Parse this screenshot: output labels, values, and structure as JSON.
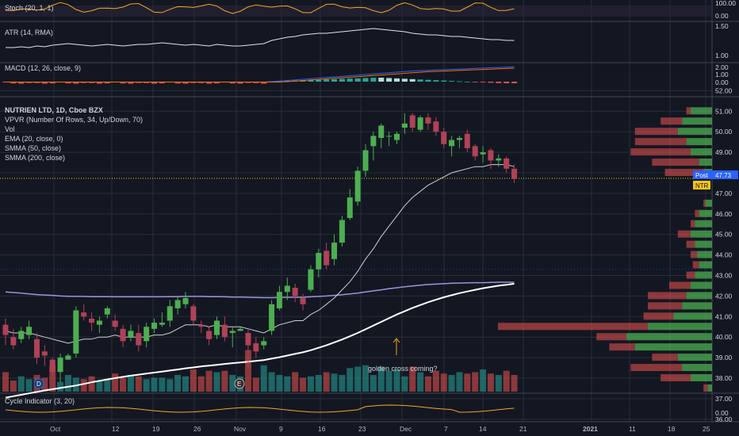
{
  "panes": {
    "stoch": {
      "label": "Stoch (20, 1, 1)",
      "ticks": [
        "100.00",
        "0.00"
      ]
    },
    "atr": {
      "label": "ATR (14, RMA)",
      "ticks": [
        "1.50",
        "1.00"
      ]
    },
    "macd": {
      "label": "MACD (12, 26, close, 9)",
      "ticks": [
        "2.00",
        "1.00",
        "0.00"
      ]
    },
    "main": {
      "title": "NUTRIEN LTD, 1D, Cboe BZX",
      "indicators": [
        "VPVR (Number Of Rows, 34, Up/Down, 70)",
        "Vol",
        "EMA (20, close, 0)",
        "SMMA (50, close)",
        "SMMA (200, close)"
      ],
      "ticks": [
        "52.00",
        "51.00",
        "50.00",
        "49.00",
        "48.00",
        "47.00",
        "46.00",
        "45.00",
        "44.00",
        "43.00",
        "42.00",
        "41.00",
        "40.00",
        "39.00",
        "38.00",
        "37.00",
        "36.00",
        "35.00"
      ],
      "post_label": "Post",
      "post_price": "47.73",
      "symbol_tag": "NTR",
      "annotation": "golden cross coming?",
      "event_markers": [
        "D",
        "E"
      ]
    },
    "cycle": {
      "label": "Cycle Indicator (3, 20)",
      "ticks": [
        "0.00"
      ]
    }
  },
  "x_axis": [
    "Oct",
    "12",
    "19",
    "26",
    "Nov",
    "9",
    "16",
    "23",
    "Dec",
    "7",
    "14",
    "21",
    "2021",
    "11",
    "18",
    "25"
  ],
  "colors": {
    "background": "#131722",
    "up": "#26a69a",
    "up_candle": "#4caf50",
    "down": "#ef5350",
    "down_candle": "#b04257",
    "ema": "#cfcfcf",
    "smma50": "#9c93d8",
    "smma200": "#ffffff",
    "annotation": "#f5a623"
  },
  "chart_data": {
    "type": "candlestick",
    "title": "NUTRIEN LTD, 1D, Cboe BZX",
    "price_range": [
      35,
      52.5
    ],
    "candles": [
      [
        40.6,
        40.9,
        39.6,
        40.1
      ],
      [
        40.0,
        40.4,
        39.4,
        39.6
      ],
      [
        39.9,
        40.5,
        39.7,
        40.3
      ],
      [
        40.1,
        40.8,
        39.9,
        40.5
      ],
      [
        39.9,
        40.2,
        38.7,
        39.0
      ],
      [
        39.3,
        39.6,
        38.6,
        39.1
      ],
      [
        38.9,
        39.0,
        38.1,
        38.3
      ],
      [
        38.3,
        39.2,
        37.8,
        39.0
      ],
      [
        38.9,
        39.2,
        39.0,
        39.1
      ],
      [
        39.2,
        41.5,
        39.0,
        41.3
      ],
      [
        41.2,
        41.6,
        40.8,
        41.0
      ],
      [
        40.9,
        41.2,
        40.3,
        40.7
      ],
      [
        40.6,
        41.0,
        40.2,
        40.8
      ],
      [
        41.1,
        41.5,
        40.9,
        41.4
      ],
      [
        40.8,
        41.1,
        40.3,
        40.5
      ],
      [
        40.4,
        40.6,
        39.5,
        39.8
      ],
      [
        40.0,
        40.6,
        39.8,
        40.3
      ],
      [
        40.2,
        40.6,
        39.3,
        39.6
      ],
      [
        39.8,
        40.7,
        39.5,
        40.5
      ],
      [
        40.4,
        40.9,
        40.2,
        40.7
      ],
      [
        40.6,
        41.2,
        40.5,
        40.7
      ],
      [
        40.8,
        41.8,
        40.5,
        41.5
      ],
      [
        41.4,
        42.0,
        41.1,
        41.8
      ],
      [
        41.6,
        42.2,
        41.4,
        41.9
      ],
      [
        41.5,
        41.6,
        40.6,
        40.8
      ],
      [
        40.6,
        40.8,
        40.2,
        40.5
      ],
      [
        40.3,
        40.5,
        39.6,
        39.9
      ],
      [
        40.1,
        41.0,
        39.9,
        40.8
      ],
      [
        40.6,
        41.0,
        39.8,
        40.0
      ],
      [
        40.2,
        40.5,
        39.5,
        40.3
      ],
      [
        40.3,
        40.5,
        40.3,
        40.4
      ],
      [
        40.2,
        40.4,
        38.5,
        39.6
      ],
      [
        39.7,
        40.0,
        39.0,
        39.3
      ],
      [
        39.6,
        40.0,
        39.4,
        39.8
      ],
      [
        40.3,
        41.8,
        40.1,
        41.6
      ],
      [
        41.4,
        42.5,
        41.3,
        42.2
      ],
      [
        42.2,
        42.9,
        41.8,
        42.5
      ],
      [
        42.4,
        42.6,
        41.7,
        42.0
      ],
      [
        41.9,
        42.1,
        41.3,
        41.6
      ],
      [
        42.3,
        43.5,
        42.2,
        43.3
      ],
      [
        43.3,
        44.3,
        42.9,
        44.1
      ],
      [
        44.2,
        44.6,
        43.3,
        43.5
      ],
      [
        43.8,
        45.0,
        43.5,
        44.6
      ],
      [
        44.6,
        45.9,
        44.4,
        45.7
      ],
      [
        45.8,
        47.2,
        45.7,
        46.8
      ],
      [
        46.6,
        48.3,
        46.4,
        48.1
      ],
      [
        48.1,
        49.4,
        47.8,
        49.1
      ],
      [
        49.3,
        50.0,
        48.6,
        49.8
      ],
      [
        49.7,
        50.4,
        49.2,
        50.3
      ],
      [
        49.8,
        50.0,
        49.3,
        49.8
      ],
      [
        49.6,
        50.0,
        49.4,
        49.9
      ],
      [
        50.2,
        50.9,
        49.9,
        50.4
      ],
      [
        50.8,
        50.9,
        50.0,
        50.2
      ],
      [
        50.1,
        50.8,
        50.0,
        50.7
      ],
      [
        50.7,
        50.9,
        50.1,
        50.4
      ],
      [
        50.5,
        50.7,
        49.8,
        50.0
      ],
      [
        50.0,
        50.2,
        49.2,
        49.4
      ],
      [
        49.3,
        49.8,
        48.8,
        49.6
      ],
      [
        49.6,
        49.8,
        49.2,
        49.7
      ],
      [
        49.9,
        50.1,
        49.0,
        49.2
      ],
      [
        49.3,
        49.4,
        48.6,
        48.8
      ],
      [
        48.9,
        49.3,
        48.5,
        49.0
      ],
      [
        49.1,
        49.2,
        48.2,
        48.6
      ],
      [
        48.6,
        48.9,
        48.3,
        48.7
      ],
      [
        48.7,
        48.8,
        48.0,
        48.2
      ],
      [
        48.2,
        48.4,
        47.5,
        47.7
      ]
    ],
    "volume": [
      70,
      40,
      55,
      45,
      60,
      50,
      95,
      35,
      60,
      50,
      45,
      55,
      40,
      45,
      65,
      50,
      60,
      55,
      45,
      50,
      50,
      45,
      60,
      55,
      80,
      55,
      75,
      70,
      75,
      60,
      55,
      150,
      50,
      95,
      70,
      60,
      55,
      70,
      50,
      55,
      60,
      70,
      65,
      60,
      85,
      90,
      95,
      60,
      90,
      75,
      80,
      55,
      90,
      70,
      55,
      75,
      65,
      60,
      70,
      65,
      70,
      80,
      65,
      60,
      75,
      60
    ],
    "ema20": [
      40.3,
      40.2,
      40.2,
      40.2,
      40.1,
      40.0,
      39.9,
      39.8,
      39.7,
      39.8,
      39.9,
      39.9,
      40.0,
      40.0,
      40.1,
      40.0,
      40.0,
      40.0,
      40.0,
      40.1,
      40.1,
      40.2,
      40.4,
      40.6,
      40.6,
      40.6,
      40.5,
      40.6,
      40.5,
      40.5,
      40.5,
      40.4,
      40.3,
      40.2,
      40.4,
      40.6,
      40.7,
      40.8,
      40.8,
      41.1,
      41.3,
      41.6,
      41.9,
      42.3,
      42.7,
      43.2,
      43.8,
      44.3,
      44.9,
      45.4,
      45.9,
      46.4,
      46.8,
      47.1,
      47.4,
      47.6,
      47.8,
      48.0,
      48.1,
      48.2,
      48.3,
      48.3,
      48.4,
      48.4,
      48.4,
      48.3
    ],
    "smma50": [
      42.2,
      42.17,
      42.14,
      42.1,
      42.07,
      42.05,
      42.03,
      42.0,
      41.99,
      41.98,
      41.98,
      41.97,
      41.97,
      41.97,
      41.96,
      41.96,
      41.96,
      41.96,
      41.96,
      41.96,
      41.96,
      41.97,
      41.97,
      41.98,
      41.98,
      41.98,
      41.97,
      41.97,
      41.96,
      41.95,
      41.95,
      41.94,
      41.93,
      41.92,
      41.92,
      41.93,
      41.94,
      41.94,
      41.94,
      41.96,
      41.98,
      42.0,
      42.03,
      42.06,
      42.1,
      42.14,
      42.2,
      42.25,
      42.3,
      42.36,
      42.4,
      42.45,
      42.49,
      42.53,
      42.56,
      42.58,
      42.6,
      42.62,
      42.63,
      42.64,
      42.65,
      42.65,
      42.66,
      42.67,
      42.67,
      42.67
    ],
    "smma200": [
      37.05,
      37.12,
      37.19,
      37.26,
      37.33,
      37.4,
      37.46,
      37.52,
      37.58,
      37.64,
      37.72,
      37.8,
      37.87,
      37.94,
      38.0,
      38.06,
      38.12,
      38.17,
      38.22,
      38.27,
      38.32,
      38.37,
      38.42,
      38.48,
      38.52,
      38.57,
      38.61,
      38.65,
      38.69,
      38.73,
      38.76,
      38.8,
      38.84,
      38.88,
      38.95,
      39.02,
      39.1,
      39.18,
      39.26,
      39.36,
      39.48,
      39.6,
      39.74,
      39.88,
      40.04,
      40.2,
      40.38,
      40.56,
      40.74,
      40.92,
      41.1,
      41.26,
      41.42,
      41.56,
      41.7,
      41.82,
      41.94,
      42.04,
      42.14,
      42.22,
      42.3,
      42.38,
      42.44,
      42.5,
      42.55,
      42.6
    ],
    "volume_profile": [
      {
        "price": 51.0,
        "up": 0.1,
        "down": 0.02
      },
      {
        "price": 50.5,
        "up": 0.14,
        "down": 0.1
      },
      {
        "price": 50.0,
        "up": 0.16,
        "down": 0.2
      },
      {
        "price": 49.5,
        "up": 0.12,
        "down": 0.24
      },
      {
        "price": 49.0,
        "up": 0.1,
        "down": 0.28
      },
      {
        "price": 48.5,
        "up": 0.06,
        "down": 0.22
      },
      {
        "price": 48.0,
        "up": 0.04,
        "down": 0.18
      },
      {
        "price": 46.5,
        "up": 0.03,
        "down": 0.01
      },
      {
        "price": 46.0,
        "up": 0.06,
        "down": 0.02
      },
      {
        "price": 45.5,
        "up": 0.08,
        "down": 0.02
      },
      {
        "price": 45.0,
        "up": 0.1,
        "down": 0.06
      },
      {
        "price": 44.5,
        "up": 0.08,
        "down": 0.04
      },
      {
        "price": 44.0,
        "up": 0.07,
        "down": 0.03
      },
      {
        "price": 43.5,
        "up": 0.06,
        "down": 0.03
      },
      {
        "price": 43.0,
        "up": 0.08,
        "down": 0.04
      },
      {
        "price": 42.5,
        "up": 0.1,
        "down": 0.1
      },
      {
        "price": 42.0,
        "up": 0.12,
        "down": 0.18
      },
      {
        "price": 41.5,
        "up": 0.14,
        "down": 0.16
      },
      {
        "price": 41.0,
        "up": 0.18,
        "down": 0.14
      },
      {
        "price": 40.5,
        "up": 0.3,
        "down": 0.7
      },
      {
        "price": 40.0,
        "up": 0.4,
        "down": 0.14
      },
      {
        "price": 39.5,
        "up": 0.36,
        "down": 0.12
      },
      {
        "price": 39.0,
        "up": 0.16,
        "down": 0.12
      },
      {
        "price": 38.5,
        "up": 0.14,
        "down": 0.24
      },
      {
        "price": 38.0,
        "up": 0.1,
        "down": 0.14
      },
      {
        "price": 37.5,
        "up": 0.02,
        "down": 0.02
      }
    ]
  }
}
